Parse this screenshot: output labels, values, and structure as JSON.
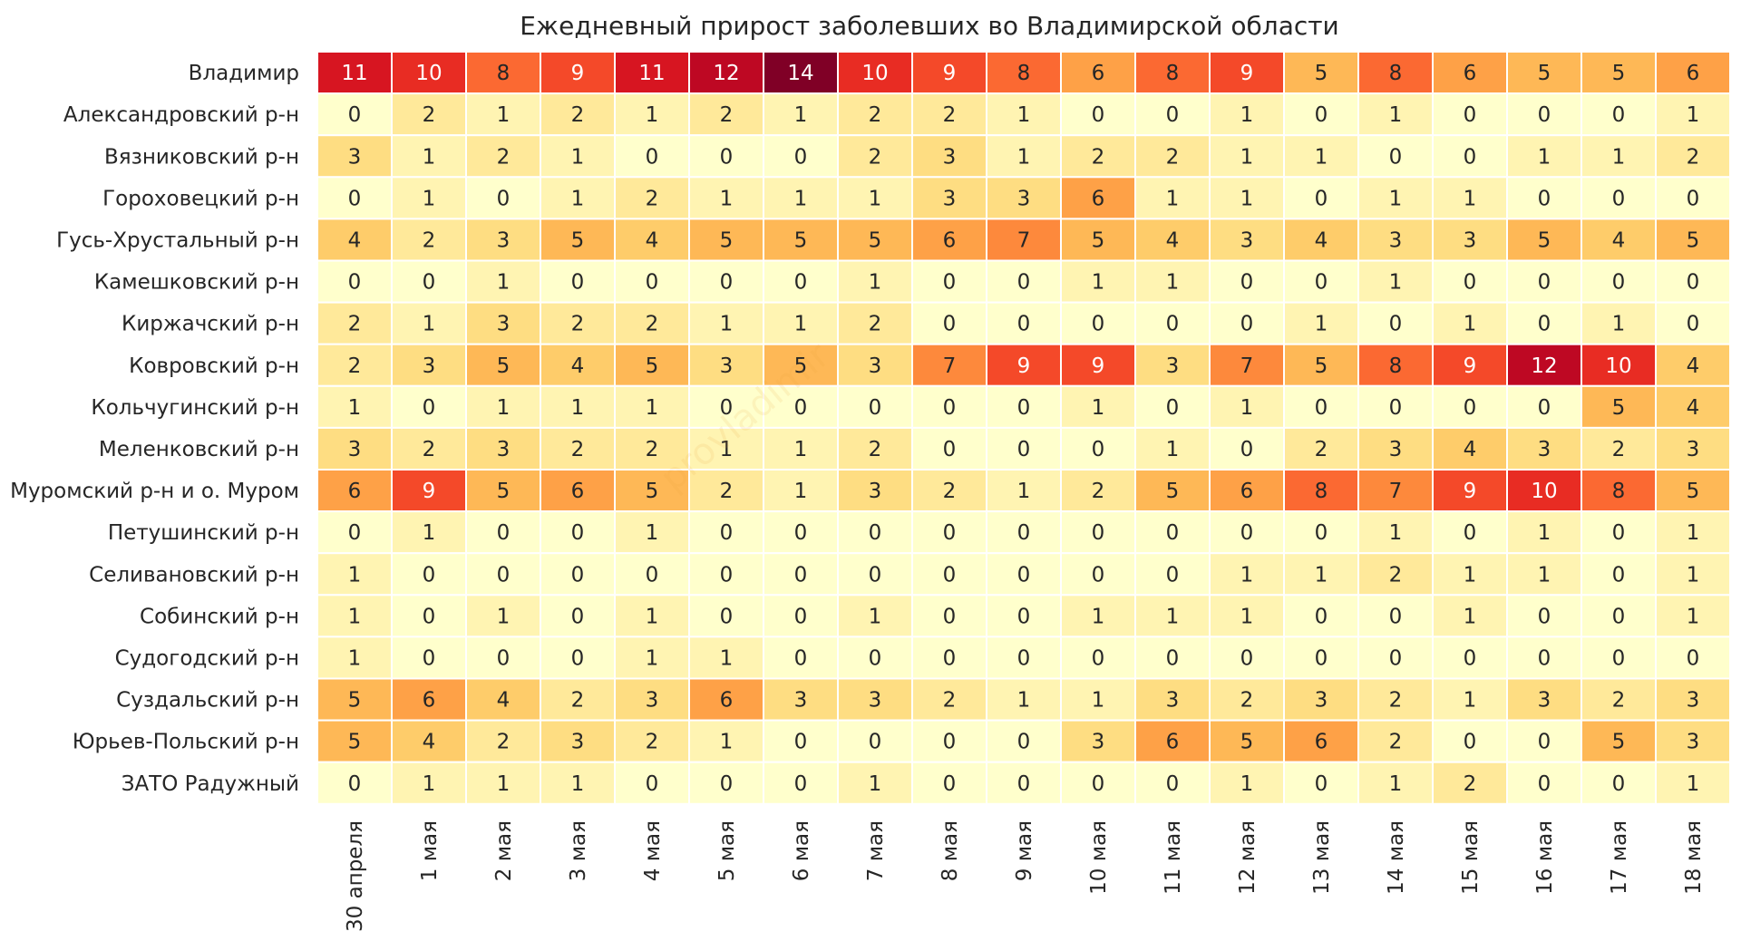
{
  "chart_data": {
    "type": "heatmap",
    "title": "Ежедневный прирост заболевших во Владимирской области",
    "xlabel": "",
    "ylabel": "",
    "colormap": "YlOrRd",
    "value_range": [
      0,
      14
    ],
    "watermark": "provladimir",
    "rows": [
      "Владимир",
      "Александровский р-н",
      "Вязниковский р-н",
      "Гороховецкий р-н",
      "Гусь-Хрустальный р-н",
      "Камешковский р-н",
      "Киржачский р-н",
      "Ковровский р-н",
      "Кольчугинский р-н",
      "Меленковский р-н",
      "Муромский р-н и о. Муром",
      "Петушинский р-н",
      "Селивановский р-н",
      "Собинский р-н",
      "Судогодский р-н",
      "Суздальский р-н",
      "Юрьев-Польский р-н",
      "ЗАТО Радужный"
    ],
    "columns": [
      "30 апреля",
      "1 мая",
      "2 мая",
      "3 мая",
      "4 мая",
      "5 мая",
      "6 мая",
      "7 мая",
      "8 мая",
      "9 мая",
      "10 мая",
      "11 мая",
      "12 мая",
      "13 мая",
      "14 мая",
      "15 мая",
      "16 мая",
      "17 мая",
      "18 мая"
    ],
    "values": [
      [
        11,
        10,
        8,
        9,
        11,
        12,
        14,
        10,
        9,
        8,
        6,
        8,
        9,
        5,
        8,
        6,
        5,
        5,
        6
      ],
      [
        0,
        2,
        1,
        2,
        1,
        2,
        1,
        2,
        2,
        1,
        0,
        0,
        1,
        0,
        1,
        0,
        0,
        0,
        1
      ],
      [
        3,
        1,
        2,
        1,
        0,
        0,
        0,
        2,
        3,
        1,
        2,
        2,
        1,
        1,
        0,
        0,
        1,
        1,
        2
      ],
      [
        0,
        1,
        0,
        1,
        2,
        1,
        1,
        1,
        3,
        3,
        6,
        1,
        1,
        0,
        1,
        1,
        0,
        0,
        0
      ],
      [
        4,
        2,
        3,
        5,
        4,
        5,
        5,
        5,
        6,
        7,
        5,
        4,
        3,
        4,
        3,
        3,
        5,
        4,
        5
      ],
      [
        0,
        0,
        1,
        0,
        0,
        0,
        0,
        1,
        0,
        0,
        1,
        1,
        0,
        0,
        1,
        0,
        0,
        0,
        0
      ],
      [
        2,
        1,
        3,
        2,
        2,
        1,
        1,
        2,
        0,
        0,
        0,
        0,
        0,
        1,
        0,
        1,
        0,
        1,
        0
      ],
      [
        2,
        3,
        5,
        4,
        5,
        3,
        5,
        3,
        7,
        9,
        9,
        3,
        7,
        5,
        8,
        9,
        12,
        10,
        4
      ],
      [
        1,
        0,
        1,
        1,
        1,
        0,
        0,
        0,
        0,
        0,
        1,
        0,
        1,
        0,
        0,
        0,
        0,
        5,
        4
      ],
      [
        3,
        2,
        3,
        2,
        2,
        1,
        1,
        2,
        0,
        0,
        0,
        1,
        0,
        2,
        3,
        4,
        3,
        2,
        3
      ],
      [
        6,
        9,
        5,
        6,
        5,
        2,
        1,
        3,
        2,
        1,
        2,
        5,
        6,
        8,
        7,
        9,
        10,
        8,
        5
      ],
      [
        0,
        1,
        0,
        0,
        1,
        0,
        0,
        0,
        0,
        0,
        0,
        0,
        0,
        0,
        1,
        0,
        1,
        0,
        1
      ],
      [
        1,
        0,
        0,
        0,
        0,
        0,
        0,
        0,
        0,
        0,
        0,
        0,
        1,
        1,
        2,
        1,
        1,
        0,
        1
      ],
      [
        1,
        0,
        1,
        0,
        1,
        0,
        0,
        1,
        0,
        0,
        1,
        1,
        1,
        0,
        0,
        1,
        0,
        0,
        1
      ],
      [
        1,
        0,
        0,
        0,
        1,
        1,
        0,
        0,
        0,
        0,
        0,
        0,
        0,
        0,
        0,
        0,
        0,
        0,
        0
      ],
      [
        5,
        6,
        4,
        2,
        3,
        6,
        3,
        3,
        2,
        1,
        1,
        3,
        2,
        3,
        2,
        1,
        3,
        2,
        3
      ],
      [
        5,
        4,
        2,
        3,
        2,
        1,
        0,
        0,
        0,
        0,
        3,
        6,
        5,
        6,
        2,
        0,
        0,
        5,
        3
      ],
      [
        0,
        1,
        1,
        1,
        0,
        0,
        0,
        1,
        0,
        0,
        0,
        0,
        1,
        0,
        1,
        2,
        0,
        0,
        1
      ]
    ]
  },
  "colors": {
    "scale": [
      "#ffffcc",
      "#fff0a8",
      "#fee087",
      "#fec965",
      "#feab4b",
      "#fd893c",
      "#fa5c2e",
      "#ec3023",
      "#d31121",
      "#af0225",
      "#800026"
    ],
    "cell_border": "#ffffff",
    "text_dark": "#262626",
    "text_light": "#ffffff"
  }
}
